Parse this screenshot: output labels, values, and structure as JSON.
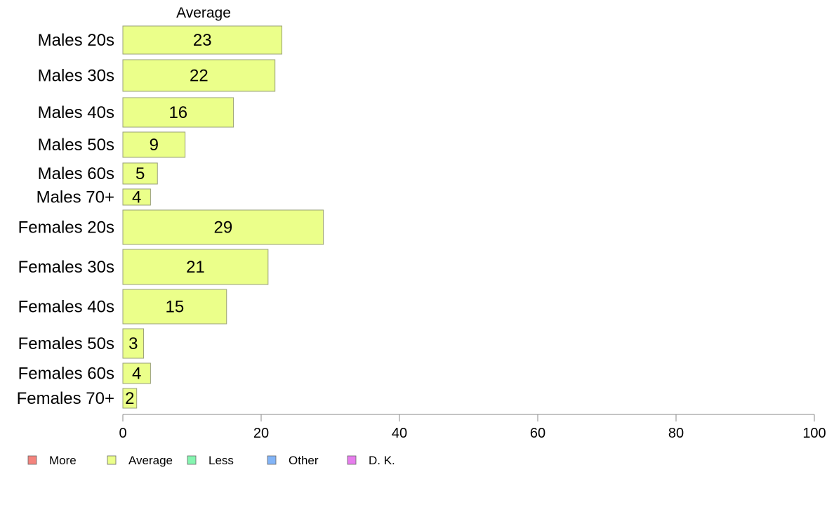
{
  "chart_data": {
    "type": "bar",
    "orientation": "horizontal",
    "column_header": "Average",
    "categories": [
      "Males 20s",
      "Males 30s",
      "Males 40s",
      "Males 50s",
      "Males 60s",
      "Males 70+",
      "Females 20s",
      "Females 30s",
      "Females 40s",
      "Females 50s",
      "Females 60s",
      "Females 70+"
    ],
    "series": [
      {
        "name": "Average",
        "color": "#ebff8a",
        "values": [
          23,
          22,
          16,
          9,
          5,
          4,
          29,
          21,
          15,
          3,
          4,
          2
        ]
      }
    ],
    "xlim": [
      0,
      100
    ],
    "xticks": [
      "0",
      "20",
      "40",
      "60",
      "80",
      "100"
    ],
    "grid": false,
    "legend": {
      "placement": "bottom-left",
      "items": [
        {
          "label": "More",
          "color": "#f4837d"
        },
        {
          "label": "Average",
          "color": "#ebff8a"
        },
        {
          "label": "Less",
          "color": "#85f5b0"
        },
        {
          "label": "Other",
          "color": "#82b4f7"
        },
        {
          "label": "D. K.",
          "color": "#e77ded"
        }
      ]
    }
  }
}
